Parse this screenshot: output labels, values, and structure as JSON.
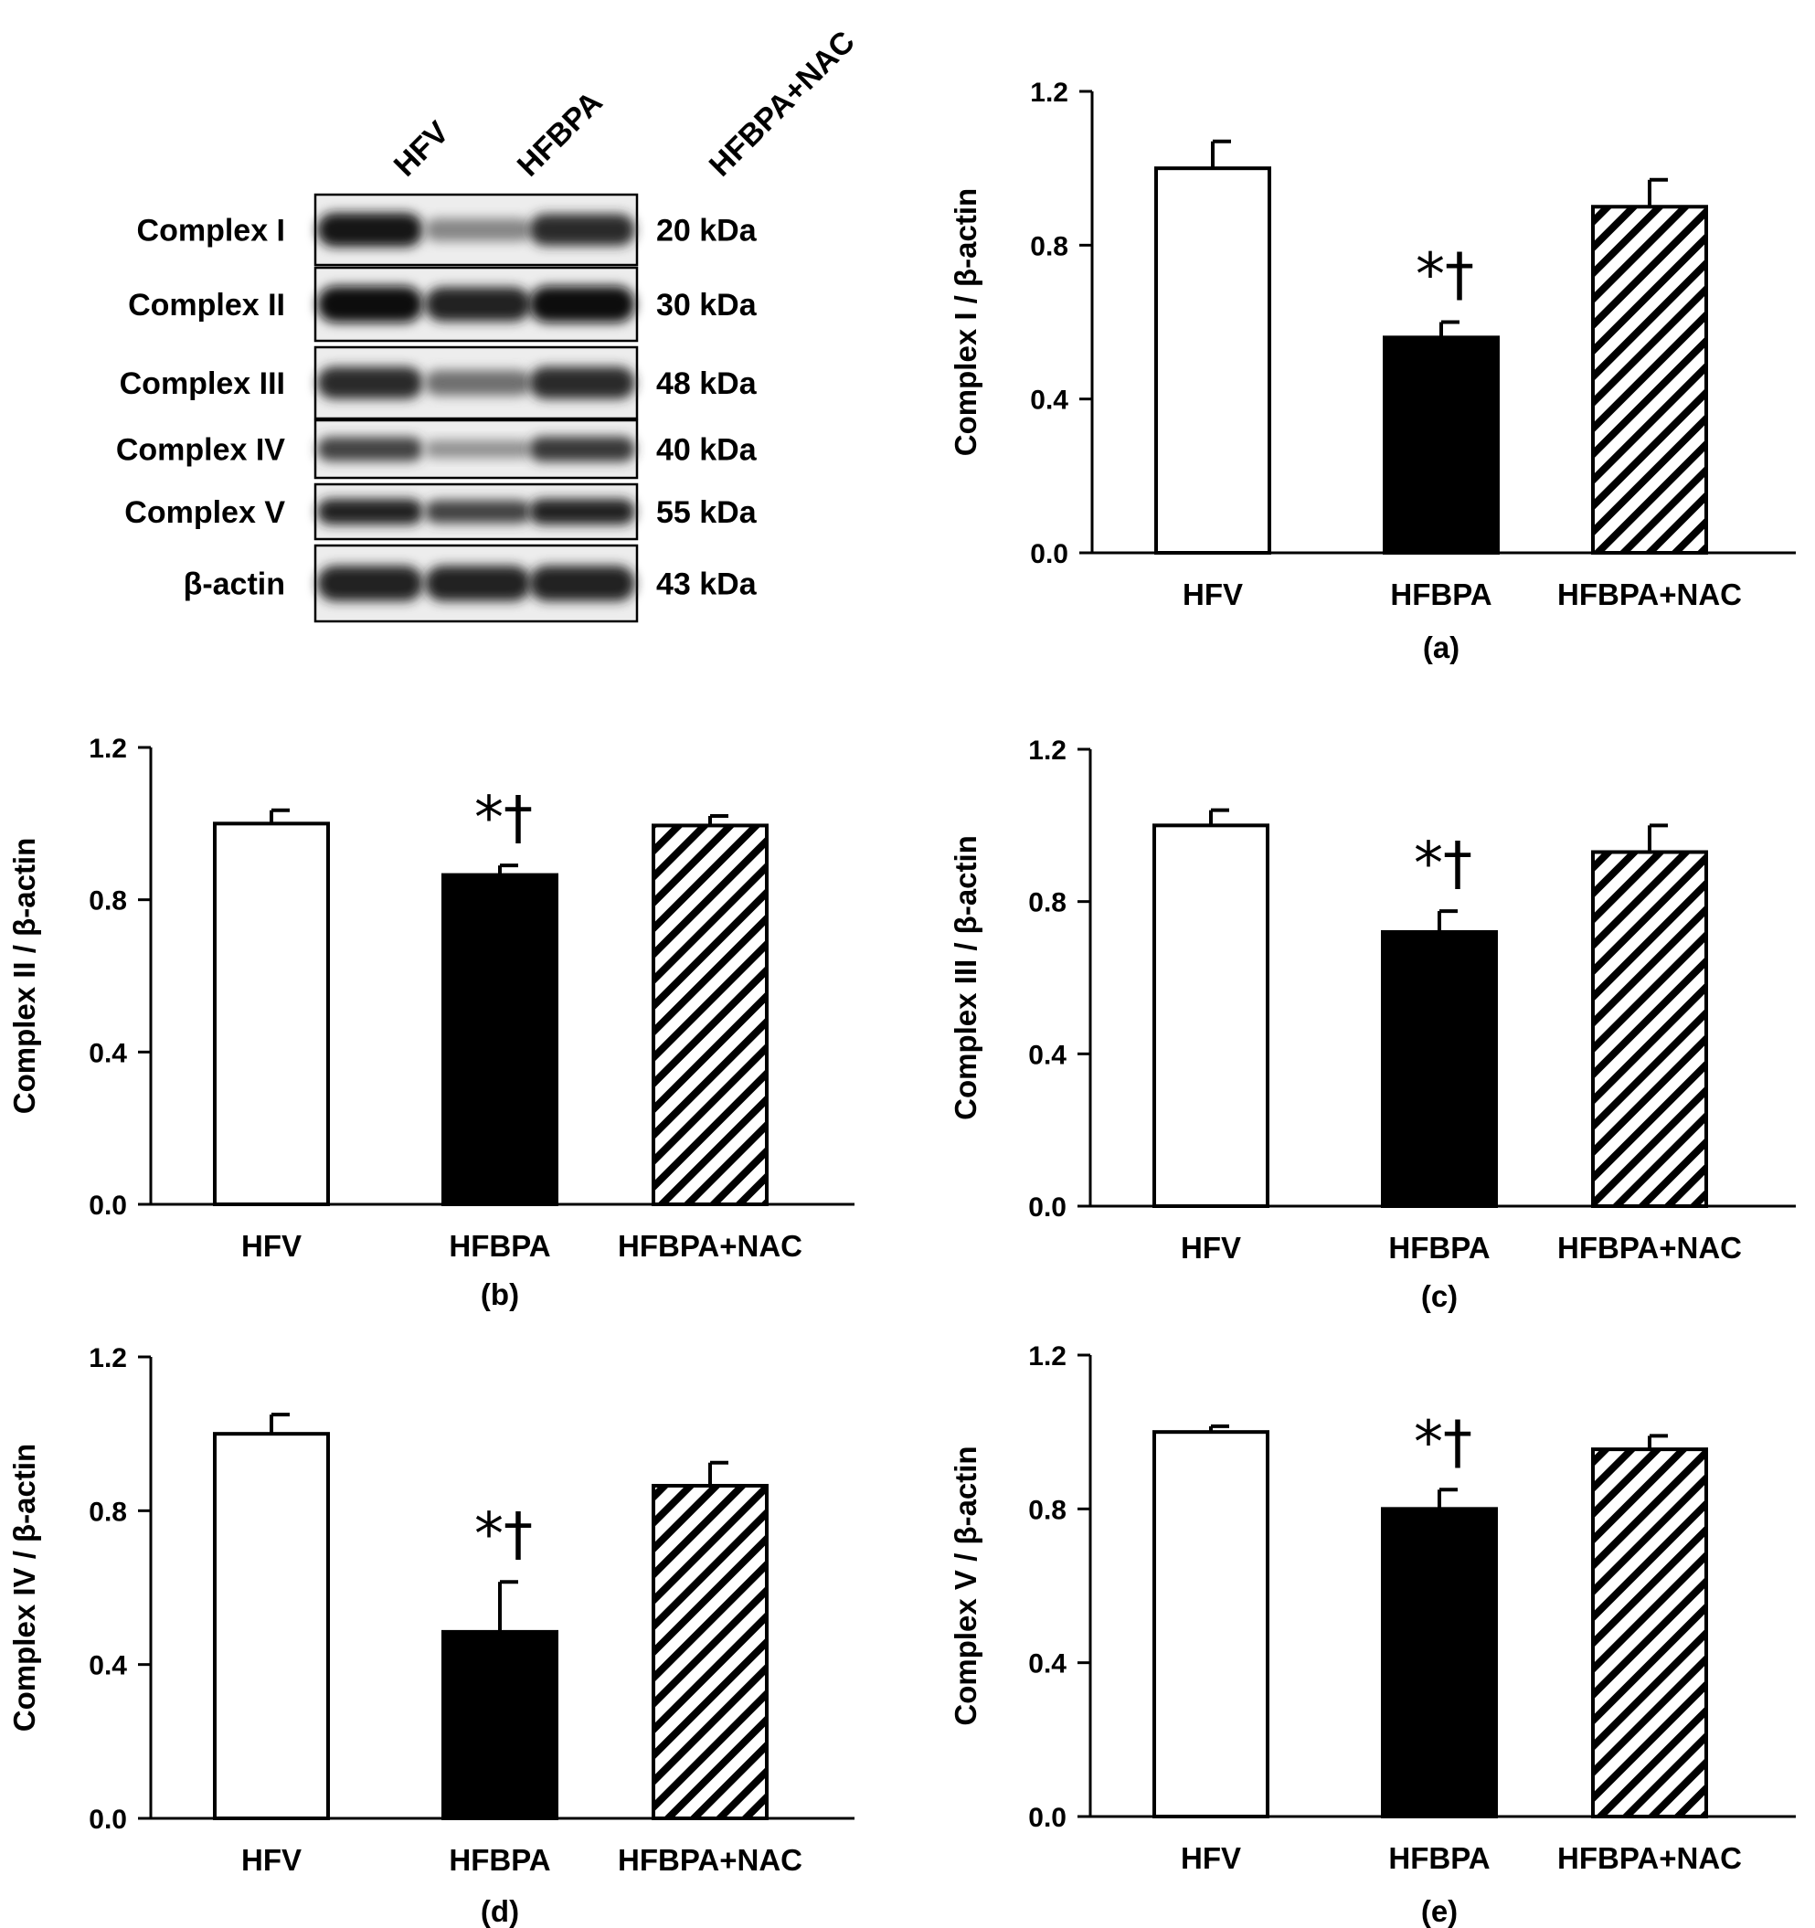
{
  "western_blot": {
    "lanes": [
      "HFV",
      "HFBPA",
      "HFBPA+NAC"
    ],
    "rows": [
      {
        "protein": "Complex I",
        "size": "20 kDa",
        "band_intensity": [
          0.95,
          0.45,
          0.85
        ]
      },
      {
        "protein": "Complex II",
        "size": "30 kDa",
        "band_intensity": [
          1.0,
          0.9,
          1.0
        ]
      },
      {
        "protein": "Complex III",
        "size": "48 kDa",
        "band_intensity": [
          0.85,
          0.55,
          0.85
        ]
      },
      {
        "protein": "Complex IV",
        "size": "40 kDa",
        "band_intensity": [
          0.75,
          0.4,
          0.8
        ]
      },
      {
        "protein": "Complex V",
        "size": "55 kDa",
        "band_intensity": [
          0.9,
          0.75,
          0.9
        ]
      },
      {
        "protein": "β-actin",
        "size": "43 kDa",
        "band_intensity": [
          0.9,
          0.9,
          0.9
        ]
      }
    ]
  },
  "chart_data": [
    {
      "panel": "(a)",
      "type": "bar",
      "categories": [
        "HFV",
        "HFBPA",
        "HFBPA+NAC"
      ],
      "values": [
        1.0,
        0.56,
        0.9
      ],
      "errors": [
        0.07,
        0.04,
        0.07
      ],
      "ylabel": "Complex I / β-actin",
      "ylim": [
        0,
        1.2
      ],
      "yticks": [
        "0.0",
        "0.4",
        "0.8",
        "1.2"
      ],
      "significance": {
        "category": "HFBPA",
        "label": "*†"
      },
      "fills": [
        "white",
        "black",
        "hatched"
      ]
    },
    {
      "panel": "(b)",
      "type": "bar",
      "categories": [
        "HFV",
        "HFBPA",
        "HFBPA+NAC"
      ],
      "values": [
        1.0,
        0.865,
        0.995
      ],
      "errors": [
        0.035,
        0.025,
        0.025
      ],
      "ylabel": "Complex II / β-actin",
      "ylim": [
        0,
        1.2
      ],
      "yticks": [
        "0.0",
        "0.4",
        "0.8",
        "1.2"
      ],
      "significance": {
        "category": "HFBPA",
        "label": "*†"
      },
      "fills": [
        "white",
        "black",
        "hatched"
      ]
    },
    {
      "panel": "(c)",
      "type": "bar",
      "categories": [
        "HFV",
        "HFBPA",
        "HFBPA+NAC"
      ],
      "values": [
        1.0,
        0.72,
        0.93
      ],
      "errors": [
        0.04,
        0.055,
        0.07
      ],
      "ylabel": "Complex III / β-actin",
      "ylim": [
        0,
        1.2
      ],
      "yticks": [
        "0.0",
        "0.4",
        "0.8",
        "1.2"
      ],
      "significance": {
        "category": "HFBPA",
        "label": "*†"
      },
      "fills": [
        "white",
        "black",
        "hatched"
      ]
    },
    {
      "panel": "(d)",
      "type": "bar",
      "categories": [
        "HFV",
        "HFBPA",
        "HFBPA+NAC"
      ],
      "values": [
        1.0,
        0.485,
        0.865
      ],
      "errors": [
        0.05,
        0.13,
        0.06
      ],
      "ylabel": "Complex IV / β-actin",
      "ylim": [
        0,
        1.2
      ],
      "yticks": [
        "0.0",
        "0.4",
        "0.8",
        "1.2"
      ],
      "significance": {
        "category": "HFBPA",
        "label": "*†"
      },
      "fills": [
        "white",
        "black",
        "hatched"
      ]
    },
    {
      "panel": "(e)",
      "type": "bar",
      "categories": [
        "HFV",
        "HFBPA",
        "HFBPA+NAC"
      ],
      "values": [
        1.0,
        0.8,
        0.955
      ],
      "errors": [
        0.015,
        0.05,
        0.035
      ],
      "ylabel": "Complex V / β-actin",
      "ylim": [
        0,
        1.2
      ],
      "yticks": [
        "0.0",
        "0.4",
        "0.8",
        "1.2"
      ],
      "significance": {
        "category": "HFBPA",
        "label": "*†"
      },
      "fills": [
        "white",
        "black",
        "hatched"
      ]
    }
  ]
}
